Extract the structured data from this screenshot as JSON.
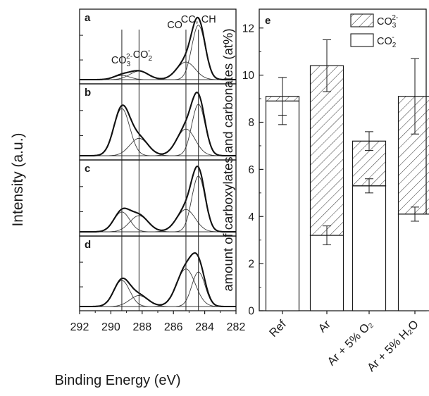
{
  "chart_data": [
    {
      "type": "line",
      "panel_labels": [
        "a",
        "b",
        "c",
        "d"
      ],
      "xlabel": "Binding Energy (eV)",
      "ylabel": "Intensity (a.u.)",
      "xlim": [
        292,
        282
      ],
      "xticks": [
        292,
        290,
        288,
        286,
        284,
        282
      ],
      "annotations": [
        {
          "text": "CO₃²⁻",
          "x": 289.3
        },
        {
          "text": "CO₂⁻",
          "x": 288.2
        },
        {
          "text": "CO",
          "x": 285.2
        },
        {
          "text": "CC, CH",
          "x": 284.4
        }
      ],
      "reference_lines_ev": [
        289.3,
        288.2,
        285.2,
        284.4
      ],
      "components": [
        {
          "name": "CO₃²⁻",
          "center_ev": 289.3,
          "fwhm_ev": 1.2
        },
        {
          "name": "CO₂⁻",
          "center_ev": 288.2,
          "fwhm_ev": 1.4
        },
        {
          "name": "CO",
          "center_ev": 285.2,
          "fwhm_ev": 1.4
        },
        {
          "name": "CC, CH",
          "center_ev": 284.4,
          "fwhm_ev": 1.0
        }
      ],
      "panels": [
        {
          "label": "a",
          "amplitudes": [
            0.07,
            0.14,
            0.29,
            0.9
          ]
        },
        {
          "label": "b",
          "amplitudes": [
            0.76,
            0.28,
            0.43,
            0.83
          ]
        },
        {
          "label": "c",
          "amplitudes": [
            0.32,
            0.26,
            0.36,
            0.9
          ]
        },
        {
          "label": "d",
          "amplitudes": [
            0.43,
            0.18,
            0.62,
            0.57
          ]
        }
      ]
    },
    {
      "type": "bar",
      "stacked": true,
      "panel_label": "e",
      "categories": [
        "Ref",
        "Ar",
        "Ar + 5% O₂",
        "Ar + 5% H₂O"
      ],
      "series": [
        {
          "name": "CO₂⁻",
          "values": [
            8.9,
            3.2,
            5.3,
            4.1
          ],
          "errors": [
            1.0,
            0.4,
            0.3,
            0.3
          ],
          "pattern": "open"
        },
        {
          "name": "CO₃²⁻",
          "values": [
            0.2,
            7.2,
            1.9,
            5.0
          ],
          "errors": [
            0.8,
            1.1,
            0.4,
            1.6
          ],
          "pattern": "hatched"
        }
      ],
      "ylabel": "amount of carboxylates and carbonates (at%)",
      "ylim": [
        0,
        12.8
      ],
      "yticks": [
        0,
        2,
        4,
        6,
        8,
        10,
        12
      ],
      "legend": "top-right",
      "colors": {
        "stroke": "#1a1a1a",
        "fill": "#ffffff"
      }
    }
  ]
}
